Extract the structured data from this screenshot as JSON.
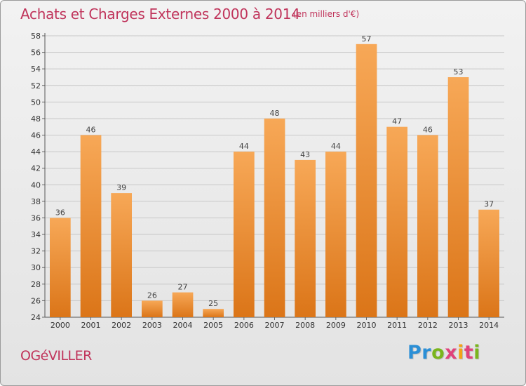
{
  "colors": {
    "accent": "#c0345b",
    "bar_light": "#f7a857",
    "bar_dark": "#db7518"
  },
  "header": {
    "title": "Achats et Charges Externes 2000 à 2014",
    "unit_note": "(en milliers d'€)"
  },
  "footer": {
    "place": "OGéVILLER",
    "brand": {
      "letters": [
        "P",
        "r",
        "o",
        "x",
        "i",
        "t",
        "i"
      ],
      "colors": [
        "#2b8fd6",
        "#2b8fd6",
        "#7ab51d",
        "#e0427b",
        "#f3a316",
        "#e0427b",
        "#7ab51d"
      ]
    }
  },
  "chart_data": {
    "type": "bar",
    "categories": [
      "2000",
      "2001",
      "2002",
      "2003",
      "2004",
      "2005",
      "2006",
      "2007",
      "2008",
      "2009",
      "2010",
      "2011",
      "2012",
      "2013",
      "2014"
    ],
    "values": [
      36,
      46,
      39,
      26,
      27,
      25,
      44,
      48,
      43,
      44,
      57,
      47,
      46,
      53,
      37
    ],
    "ylim": [
      24,
      58
    ],
    "yticks": [
      24,
      26,
      28,
      30,
      32,
      34,
      36,
      38,
      40,
      42,
      44,
      46,
      48,
      50,
      52,
      54,
      56,
      58
    ],
    "grid": true,
    "xlabel": "",
    "ylabel": ""
  }
}
